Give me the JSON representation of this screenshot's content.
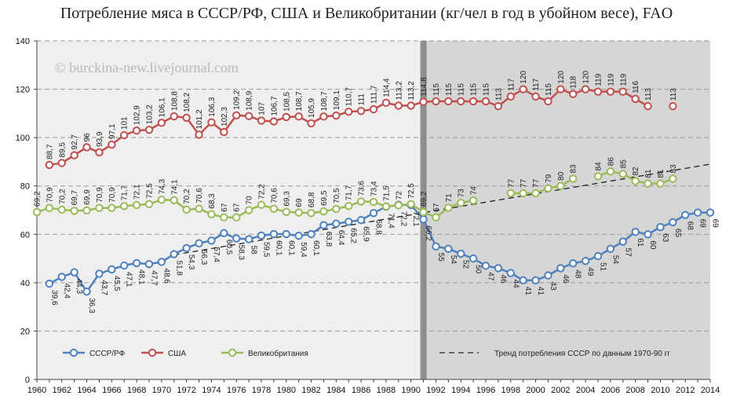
{
  "chart_data": {
    "type": "line",
    "title": "Потребление мяса в СССР/РФ, США и Великобритании (кг/чел в год в убойном весе), FAO",
    "watermark": "© burckina-new.livejournal.com",
    "ylim": [
      0,
      140
    ],
    "yticks": [
      0,
      20,
      40,
      60,
      80,
      100,
      120,
      140
    ],
    "xlim": [
      1960,
      2014
    ],
    "xticks": [
      1960,
      1962,
      1964,
      1966,
      1968,
      1970,
      1972,
      1974,
      1976,
      1978,
      1980,
      1982,
      1984,
      1986,
      1988,
      1990,
      1992,
      1994,
      1996,
      1998,
      2000,
      2002,
      2004,
      2006,
      2008,
      2010,
      2012,
      2014
    ],
    "shaded_from_year": 1991,
    "colors": {
      "ussr": "#4f81bd",
      "usa": "#c0504d",
      "uk": "#9bbb59",
      "trend": "#222222",
      "shade_left": "#efefef",
      "shade_right": "#d6d6d6",
      "divider": "#808080"
    },
    "series": [
      {
        "key": "ussr",
        "name": "СССР/РФ",
        "points": [
          [
            1961,
            39.6
          ],
          [
            1962,
            42.4
          ],
          [
            1963,
            44.3
          ],
          [
            1964,
            36.3
          ],
          [
            1965,
            43.7
          ],
          [
            1966,
            45.5
          ],
          [
            1967,
            47.1
          ],
          [
            1968,
            48.1
          ],
          [
            1969,
            47.7
          ],
          [
            1970,
            48.6
          ],
          [
            1971,
            51.8
          ],
          [
            1972,
            54.3
          ],
          [
            1973,
            56.3
          ],
          [
            1974,
            57.4
          ],
          [
            1975,
            60.5
          ],
          [
            1976,
            58.3
          ],
          [
            1977,
            58
          ],
          [
            1978,
            59.5
          ],
          [
            1979,
            60.1
          ],
          [
            1980,
            60.1
          ],
          [
            1981,
            59.4
          ],
          [
            1982,
            60.1
          ],
          [
            1983,
            63.8
          ],
          [
            1984,
            64.4
          ],
          [
            1985,
            65.2
          ],
          [
            1986,
            65.9
          ],
          [
            1987,
            68.8
          ],
          [
            1988,
            71.4
          ],
          [
            1989,
            72.2
          ],
          [
            1990,
            72.1
          ],
          [
            1991,
            66.2
          ],
          [
            1992,
            55
          ],
          [
            1993,
            54
          ],
          [
            1994,
            52
          ],
          [
            1995,
            50
          ],
          [
            1996,
            47
          ],
          [
            1997,
            46
          ],
          [
            1998,
            44
          ],
          [
            1999,
            41
          ],
          [
            2000,
            41
          ],
          [
            2001,
            43
          ],
          [
            2002,
            46
          ],
          [
            2003,
            48
          ],
          [
            2004,
            49
          ],
          [
            2005,
            51
          ],
          [
            2006,
            54
          ],
          [
            2007,
            57
          ],
          [
            2008,
            61
          ],
          [
            2009,
            60
          ],
          [
            2010,
            63
          ],
          [
            2011,
            65
          ],
          [
            2012,
            68
          ],
          [
            2013,
            69
          ],
          [
            2014,
            69
          ]
        ]
      },
      {
        "key": "usa",
        "name": "США",
        "points": [
          [
            1961,
            88.7
          ],
          [
            1962,
            89.5
          ],
          [
            1963,
            92.7
          ],
          [
            1964,
            96
          ],
          [
            1965,
            93.9
          ],
          [
            1966,
            97.1
          ],
          [
            1967,
            101
          ],
          [
            1968,
            102.9
          ],
          [
            1969,
            103.2
          ],
          [
            1970,
            106.1
          ],
          [
            1971,
            108.8
          ],
          [
            1972,
            108.2
          ],
          [
            1973,
            101.2
          ],
          [
            1974,
            106.3
          ],
          [
            1975,
            102.3
          ],
          [
            1976,
            109.2
          ],
          [
            1977,
            108.9
          ],
          [
            1978,
            107
          ],
          [
            1979,
            106.7
          ],
          [
            1980,
            108.5
          ],
          [
            1981,
            108.7
          ],
          [
            1982,
            105.9
          ],
          [
            1983,
            108.7
          ],
          [
            1984,
            109.1
          ],
          [
            1985,
            110.7
          ],
          [
            1986,
            111
          ],
          [
            1987,
            111.7
          ],
          [
            1988,
            114.4
          ],
          [
            1989,
            113.2
          ],
          [
            1990,
            113.2
          ],
          [
            1991,
            114.8
          ],
          [
            1992,
            115
          ],
          [
            1993,
            115
          ],
          [
            1994,
            115
          ],
          [
            1995,
            115
          ],
          [
            1996,
            115
          ],
          [
            1997,
            113
          ],
          [
            1998,
            117
          ],
          [
            1999,
            120
          ],
          [
            2000,
            117
          ],
          [
            2001,
            115
          ],
          [
            2002,
            120
          ],
          [
            2003,
            118
          ],
          [
            2004,
            120
          ],
          [
            2005,
            119
          ],
          [
            2006,
            119
          ],
          [
            2007,
            119
          ],
          [
            2008,
            116
          ],
          [
            2009,
            113
          ],
          [
            2011,
            113
          ]
        ]
      },
      {
        "key": "uk",
        "name": "Великобритания",
        "points": [
          [
            1960,
            69.2
          ],
          [
            1961,
            70.9
          ],
          [
            1962,
            70.2
          ],
          [
            1963,
            69.7
          ],
          [
            1964,
            69.9
          ],
          [
            1965,
            70.9
          ],
          [
            1966,
            70.9
          ],
          [
            1967,
            71.7
          ],
          [
            1968,
            72.1
          ],
          [
            1969,
            72.5
          ],
          [
            1970,
            74.3
          ],
          [
            1971,
            74.1
          ],
          [
            1972,
            70.2
          ],
          [
            1973,
            70.6
          ],
          [
            1974,
            68.3
          ],
          [
            1975,
            67
          ],
          [
            1976,
            67
          ],
          [
            1977,
            70
          ],
          [
            1978,
            72.2
          ],
          [
            1979,
            70.6
          ],
          [
            1980,
            69.3
          ],
          [
            1981,
            69
          ],
          [
            1982,
            68.8
          ],
          [
            1983,
            69.5
          ],
          [
            1984,
            70.5
          ],
          [
            1985,
            71.7
          ],
          [
            1986,
            73.6
          ],
          [
            1987,
            73.4
          ],
          [
            1988,
            71.5
          ],
          [
            1989,
            72
          ],
          [
            1990,
            72.5
          ],
          [
            1991,
            69.2
          ],
          [
            1992,
            67
          ],
          [
            1993,
            71
          ],
          [
            1994,
            73
          ],
          [
            1995,
            74
          ],
          [
            1998,
            77
          ],
          [
            1999,
            77
          ],
          [
            2000,
            77
          ],
          [
            2001,
            79
          ],
          [
            2002,
            80
          ],
          [
            2003,
            83
          ],
          [
            2005,
            84
          ],
          [
            2006,
            86
          ],
          [
            2007,
            85
          ],
          [
            2008,
            82
          ],
          [
            2009,
            81
          ],
          [
            2010,
            81
          ],
          [
            2011,
            83
          ]
        ]
      }
    ],
    "trend": {
      "name": "Тренд потребления СССР по данным 1970-90 гг",
      "from": [
        1971,
        51.5
      ],
      "to": [
        2014,
        89
      ]
    }
  }
}
